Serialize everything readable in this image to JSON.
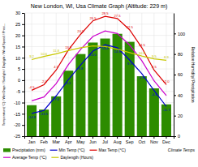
{
  "chart_data": {
    "type": "line",
    "title": "New London, WI, Usa Climate Graph (Altitude: 229 m)",
    "y_label": "Temperature(°C) / Wet Days / Sunlight / Daylight / Wind Speed / Preci...",
    "y2_label": "Relative Humidity/ Precipitation",
    "annotations": [
      "Climate Temps"
    ],
    "categories": [
      "Jan",
      "Feb",
      "Mar",
      "Apr",
      "May",
      "Jun",
      "Jul",
      "Aug",
      "Sep",
      "Oct",
      "Nov",
      "Dec"
    ],
    "ylim": [
      -25,
      30
    ],
    "yticks": [
      -25,
      -20,
      -15,
      -10,
      -5,
      0,
      5,
      10,
      15,
      20,
      25,
      30
    ],
    "y2lim": [
      0,
      120
    ],
    "y2ticks": [
      0,
      20,
      40,
      60,
      80,
      100
    ],
    "grid": true,
    "legend": "bottom",
    "series": [
      {
        "name": "Precipitation (mm)",
        "type": "bar",
        "axis": "y2",
        "color": "#2d8c00",
        "values": [
          30.2,
          25.9,
          38.8,
          63.8,
          80.0,
          91.2,
          95.1,
          99.7,
          91.9,
          58.4,
          46.6,
          31.0
        ]
      },
      {
        "name": "Min Temp (°C)",
        "type": "line",
        "color": "#0000cc",
        "values": [
          -14.8,
          -13.5,
          -7.0,
          0.3,
          6.8,
          13.0,
          15.8,
          14.5,
          9.0,
          2.9,
          -4.6,
          -11.7
        ],
        "data_labels": true,
        "value_labels": [
          "-14.8",
          "-13.5",
          "-7.0",
          "0.3",
          "6.8",
          "13.0",
          "15.8",
          "14.5",
          "9.0",
          "2.9",
          "-4.6",
          "-11.7"
        ]
      },
      {
        "name": "Max Temp (°C)",
        "type": "line",
        "color": "#dd0000",
        "values": [
          -4.5,
          -2.0,
          4.5,
          13.5,
          20.5,
          26.5,
          28.5,
          27.5,
          22.5,
          14.5,
          4.5,
          -2.0
        ],
        "data_labels": true,
        "value_labels": [
          "-4.5",
          "-2.0",
          "4.5",
          "13.5",
          "20.5",
          "26.5",
          "28.5",
          "27.5",
          "22.5",
          "14.5",
          "4.5",
          "-2.0"
        ]
      },
      {
        "name": "Average Temp (°C)",
        "type": "line",
        "color": "#cc00cc",
        "values": [
          -9.2,
          -7.5,
          -1.5,
          7.0,
          13.8,
          19.5,
          22.0,
          20.8,
          15.7,
          8.7,
          -0.3,
          -6.9
        ]
      },
      {
        "name": "Daylength (Hours)",
        "type": "line",
        "color": "#c8c800",
        "values": [
          9.2,
          10.6,
          11.8,
          13.2,
          14.5,
          15.3,
          15.0,
          13.8,
          12.3,
          10.8,
          9.5,
          8.9
        ],
        "data_labels": true,
        "value_labels": [
          "9.2",
          "10.6",
          "11.8",
          null,
          null,
          null,
          null,
          null,
          null,
          "10.8",
          "9.5",
          "8.9"
        ]
      }
    ]
  }
}
